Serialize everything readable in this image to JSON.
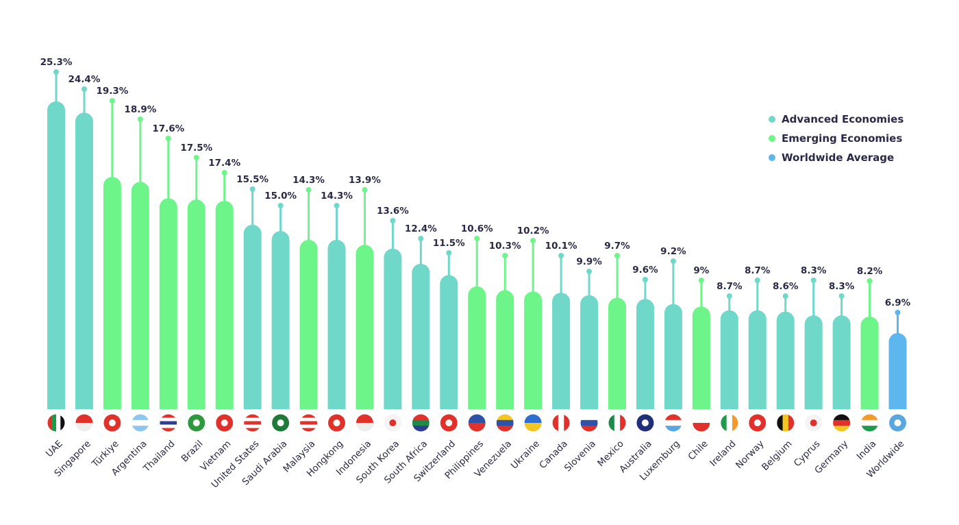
{
  "chart_data": {
    "type": "bar",
    "title": "",
    "xlabel": "",
    "ylabel": "",
    "ylim": [
      0,
      26
    ],
    "grid": false,
    "legend_placement": "top-right",
    "unit": "%",
    "categories": [
      "UAE",
      "Singapore",
      "Türkiye",
      "Argentina",
      "Thailand",
      "Brazil",
      "Vietnam",
      "United States",
      "Saudi Arabia",
      "Malaysia",
      "Hongkong",
      "Indonesia",
      "South Korea",
      "South Africa",
      "Switzerland",
      "Philippines",
      "Venezuela",
      "Ukraine",
      "Canada",
      "Slovenia",
      "Mexico",
      "Australia",
      "Luxemburg",
      "Chile",
      "Ireland",
      "Norway",
      "Belgium",
      "Cyprus",
      "Germany",
      "India",
      "Worldwide"
    ],
    "values": [
      25.3,
      24.4,
      19.3,
      18.9,
      17.6,
      17.5,
      17.4,
      15.5,
      15.0,
      14.3,
      14.3,
      13.9,
      13.6,
      12.4,
      11.5,
      10.6,
      10.3,
      10.2,
      10.1,
      9.9,
      9.7,
      9.6,
      9.2,
      9,
      8.7,
      8.7,
      8.6,
      8.3,
      8.3,
      8.2,
      6.9
    ],
    "data_labels": [
      "25.3%",
      "24.4%",
      "19.3%",
      "18.9%",
      "17.6%",
      "17.5%",
      "17.4%",
      "15.5%",
      "15.0%",
      "14.3%",
      "14.3%",
      "13.9%",
      "13.6%",
      "12.4%",
      "11.5%",
      "10.6%",
      "10.3%",
      "10.2%",
      "10.1%",
      "9.9%",
      "9.7%",
      "9.6%",
      "9.2%",
      "9%",
      "8.7%",
      "8.7%",
      "8.6%",
      "8.3%",
      "8.3%",
      "8.2%",
      "6.9%"
    ],
    "groups": [
      "advanced",
      "advanced",
      "emerging",
      "emerging",
      "emerging",
      "emerging",
      "emerging",
      "advanced",
      "advanced",
      "emerging",
      "advanced",
      "emerging",
      "advanced",
      "advanced",
      "advanced",
      "emerging",
      "emerging",
      "emerging",
      "advanced",
      "advanced",
      "emerging",
      "advanced",
      "advanced",
      "emerging",
      "advanced",
      "advanced",
      "advanced",
      "advanced",
      "advanced",
      "emerging",
      "worldwide"
    ],
    "legend": [
      {
        "key": "advanced",
        "label": "Advanced Economies",
        "color": "#6fd8c9"
      },
      {
        "key": "emerging",
        "label": "Emerging Economies",
        "color": "#6ef58a"
      },
      {
        "key": "worldwide",
        "label": "Worldwide Average",
        "color": "#5eb6ef"
      }
    ]
  }
}
